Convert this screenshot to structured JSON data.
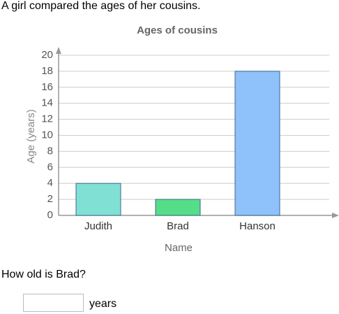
{
  "intro": "A girl compared the ages of her cousins.",
  "chart_data": {
    "type": "bar",
    "title": "Ages of cousins",
    "x_label": "Name",
    "y_label": "Age (years)",
    "categories": [
      "Judith",
      "Brad",
      "Hanson"
    ],
    "values": [
      4,
      2,
      18
    ],
    "colors": [
      "#80e0d4",
      "#55dd88",
      "#8fc1fb"
    ],
    "ylim": [
      0,
      20
    ],
    "yticks": [
      0,
      2,
      4,
      6,
      8,
      10,
      12,
      14,
      16,
      18,
      20
    ],
    "grid": true
  },
  "question": "How old is Brad?",
  "answer_unit": "years"
}
